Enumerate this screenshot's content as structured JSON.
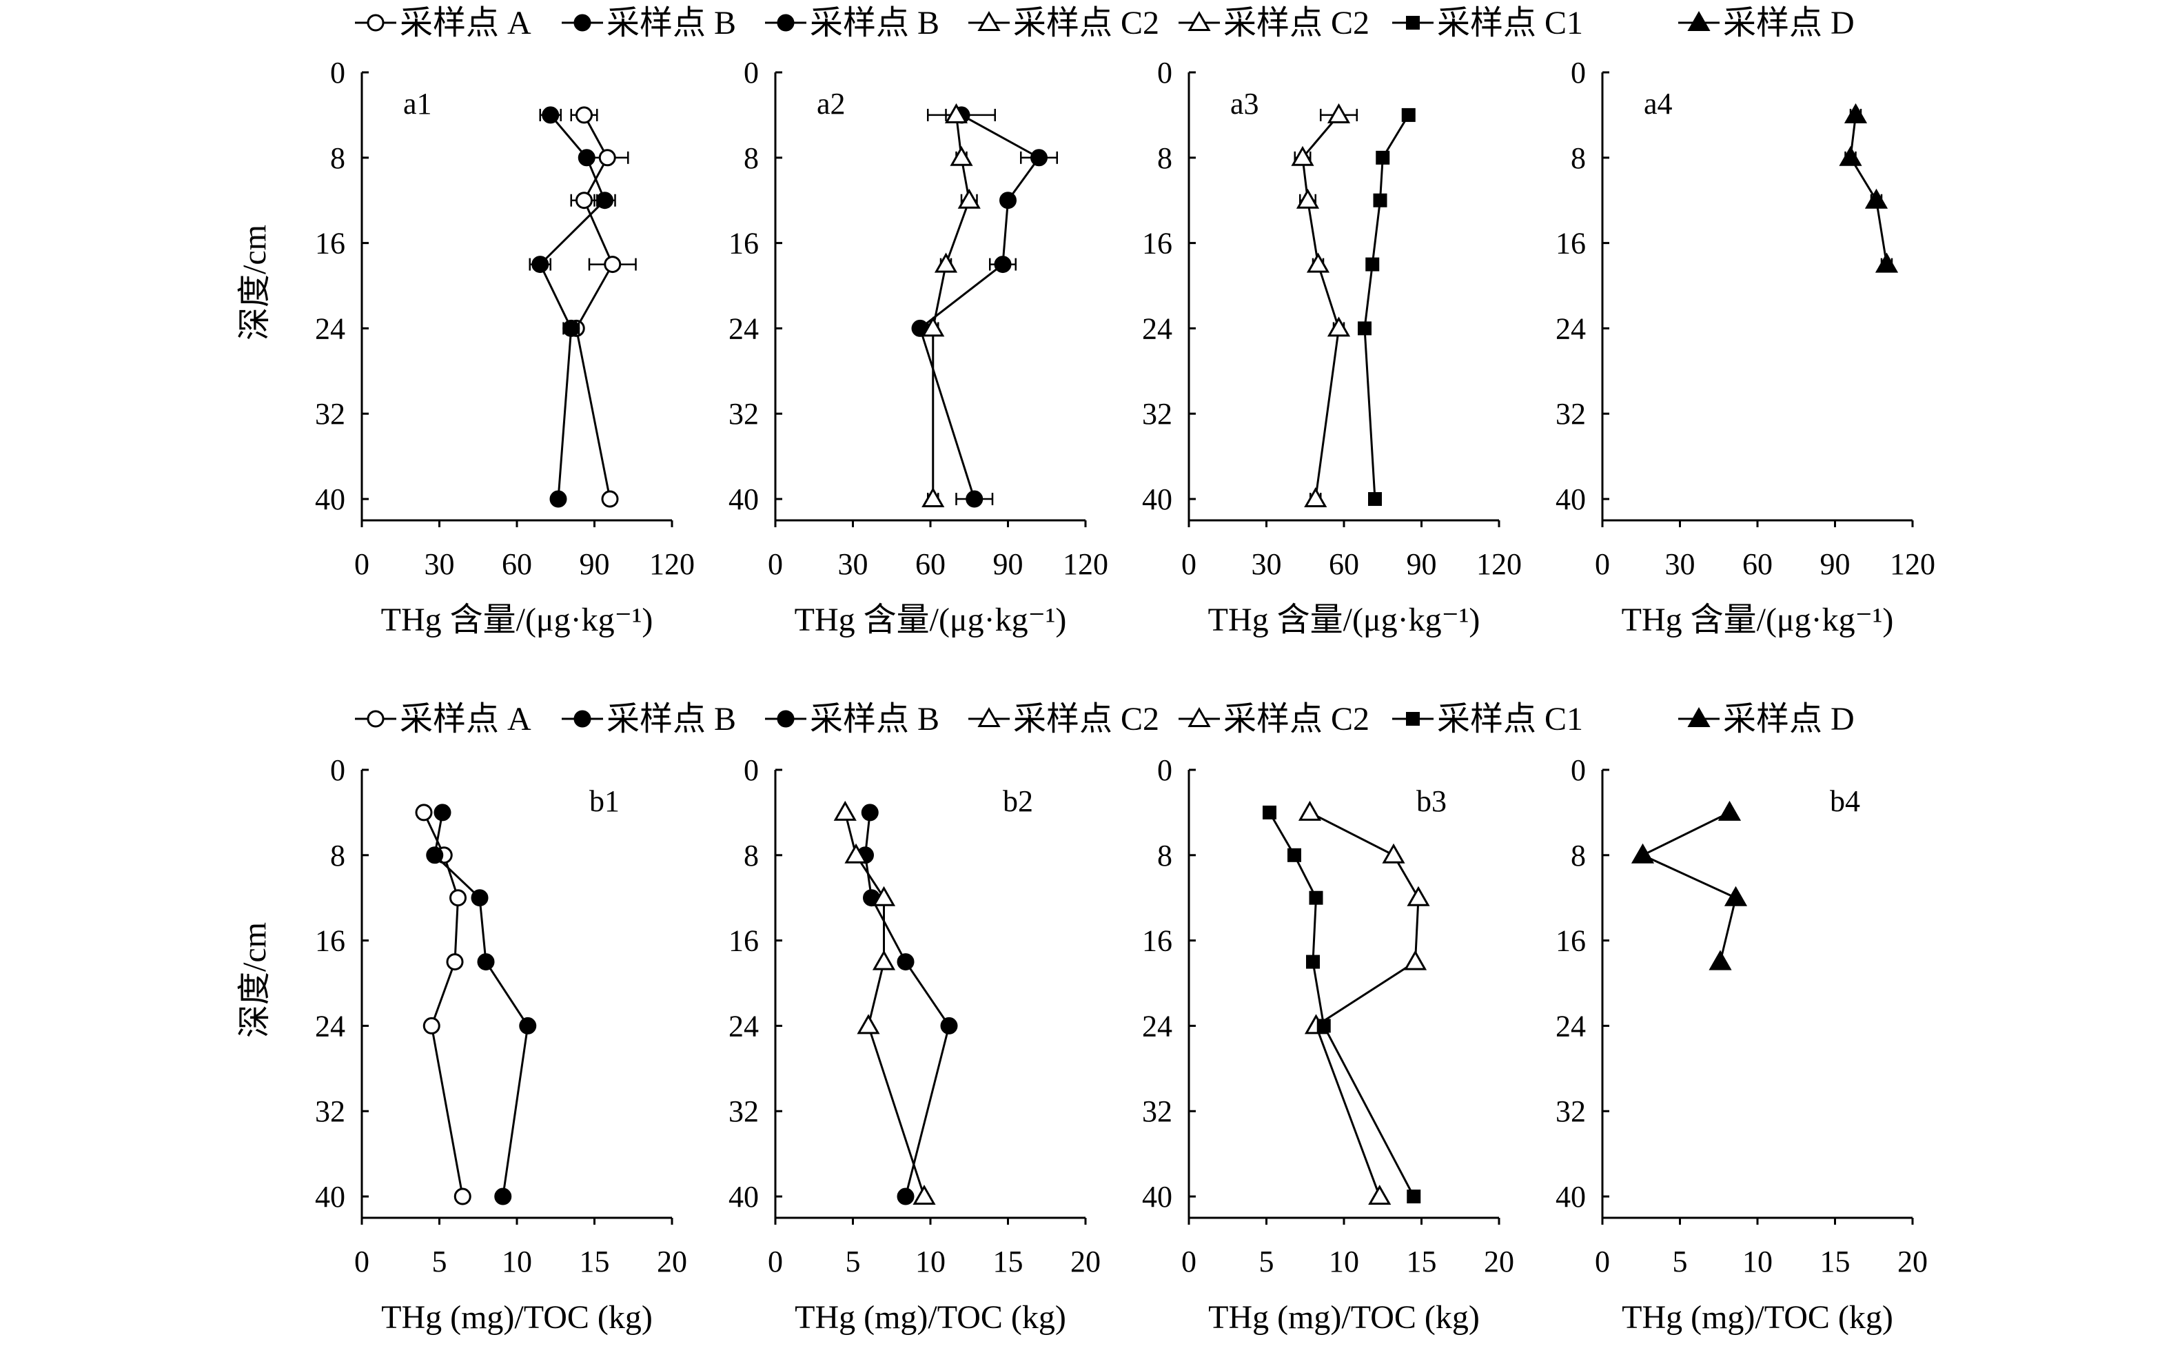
{
  "legends": [
    {
      "items": [
        {
          "label": "采样点 A",
          "marker": "circle-open"
        },
        {
          "label": "采样点 B",
          "marker": "circle-filled"
        },
        {
          "label": "采样点 B",
          "marker": "circle-filled"
        },
        {
          "label": "采样点 C2",
          "marker": "triangle-open"
        },
        {
          "label": "采样点 C2",
          "marker": "triangle-open"
        },
        {
          "label": "采样点 C1",
          "marker": "square-filled"
        },
        {
          "label": "采样点 D",
          "marker": "triangle-filled"
        }
      ]
    },
    {
      "items": [
        {
          "label": "采样点 A",
          "marker": "circle-open"
        },
        {
          "label": "采样点 B",
          "marker": "circle-filled"
        },
        {
          "label": "采样点 B",
          "marker": "circle-filled"
        },
        {
          "label": "采样点 C2",
          "marker": "triangle-open"
        },
        {
          "label": "采样点 C2",
          "marker": "triangle-open"
        },
        {
          "label": "采样点 C1",
          "marker": "square-filled"
        },
        {
          "label": "采样点 D",
          "marker": "triangle-filled"
        }
      ]
    }
  ],
  "chart_data": [
    {
      "panel": "a1",
      "type": "scatter",
      "orientation": "depth-profile",
      "xlabel": "THg 含量/(μg·kg⁻¹)",
      "ylabel": "深度/cm",
      "xlim": [
        0,
        120
      ],
      "xticks": [
        0,
        30,
        60,
        90,
        120
      ],
      "ylim": [
        0,
        42
      ],
      "yticks": [
        0,
        8,
        16,
        24,
        32,
        40
      ],
      "y_inverted": true,
      "series": [
        {
          "name": "采样点 A",
          "marker": "circle-open",
          "points": [
            {
              "x": 86,
              "y": 4,
              "err": 5
            },
            {
              "x": 95,
              "y": 8,
              "err": 8
            },
            {
              "x": 86,
              "y": 12,
              "err": 5
            },
            {
              "x": 97,
              "y": 18,
              "err": 9
            },
            {
              "x": 83,
              "y": 24,
              "err": 2
            },
            {
              "x": 96,
              "y": 40,
              "err": 2
            }
          ]
        },
        {
          "name": "采样点 B",
          "marker": "circle-filled",
          "points": [
            {
              "x": 73,
              "y": 4,
              "err": 4
            },
            {
              "x": 87,
              "y": 8,
              "err": 2
            },
            {
              "x": 94,
              "y": 12,
              "err": 4
            },
            {
              "x": 69,
              "y": 18,
              "err": 4
            },
            {
              "x": 81,
              "y": 24,
              "err": 3
            },
            {
              "x": 76,
              "y": 40,
              "err": 1
            }
          ]
        }
      ]
    },
    {
      "panel": "a2",
      "type": "scatter",
      "orientation": "depth-profile",
      "xlabel": "THg 含量/(μg·kg⁻¹)",
      "ylabel": "",
      "xlim": [
        0,
        120
      ],
      "xticks": [
        0,
        30,
        60,
        90,
        120
      ],
      "ylim": [
        0,
        42
      ],
      "yticks": [
        0,
        8,
        16,
        24,
        32,
        40
      ],
      "y_inverted": true,
      "series": [
        {
          "name": "采样点 B",
          "marker": "circle-filled",
          "points": [
            {
              "x": 72,
              "y": 4,
              "err": 13
            },
            {
              "x": 102,
              "y": 8,
              "err": 7
            },
            {
              "x": 90,
              "y": 12,
              "err": 2
            },
            {
              "x": 88,
              "y": 18,
              "err": 5
            },
            {
              "x": 56,
              "y": 24,
              "err": 1
            },
            {
              "x": 77,
              "y": 40,
              "err": 7
            }
          ]
        },
        {
          "name": "采样点 C2",
          "marker": "triangle-open",
          "points": [
            {
              "x": 70,
              "y": 4,
              "err": 4
            },
            {
              "x": 72,
              "y": 8,
              "err": 2
            },
            {
              "x": 75,
              "y": 12,
              "err": 3
            },
            {
              "x": 66,
              "y": 18,
              "err": 2
            },
            {
              "x": 61,
              "y": 24,
              "err": 2
            },
            {
              "x": 61,
              "y": 40,
              "err": 2
            }
          ]
        }
      ]
    },
    {
      "panel": "a3",
      "type": "scatter",
      "orientation": "depth-profile",
      "xlabel": "THg 含量/(μg·kg⁻¹)",
      "ylabel": "",
      "xlim": [
        0,
        120
      ],
      "xticks": [
        0,
        30,
        60,
        90,
        120
      ],
      "ylim": [
        0,
        42
      ],
      "yticks": [
        0,
        8,
        16,
        24,
        32,
        40
      ],
      "y_inverted": true,
      "series": [
        {
          "name": "采样点 C2",
          "marker": "triangle-open",
          "points": [
            {
              "x": 58,
              "y": 4,
              "err": 7
            },
            {
              "x": 44,
              "y": 8,
              "err": 3
            },
            {
              "x": 46,
              "y": 12,
              "err": 3
            },
            {
              "x": 50,
              "y": 18,
              "err": 2
            },
            {
              "x": 58,
              "y": 24,
              "err": 2
            },
            {
              "x": 49,
              "y": 40,
              "err": 2
            }
          ]
        },
        {
          "name": "采样点 C1",
          "marker": "square-filled",
          "points": [
            {
              "x": 85,
              "y": 4,
              "err": 1
            },
            {
              "x": 75,
              "y": 8,
              "err": 1
            },
            {
              "x": 74,
              "y": 12,
              "err": 2
            },
            {
              "x": 71,
              "y": 18,
              "err": 2
            },
            {
              "x": 68,
              "y": 24,
              "err": 2
            },
            {
              "x": 72,
              "y": 40,
              "err": 1
            }
          ]
        }
      ]
    },
    {
      "panel": "a4",
      "type": "scatter",
      "orientation": "depth-profile",
      "xlabel": "THg 含量/(μg·kg⁻¹)",
      "ylabel": "",
      "xlim": [
        0,
        120
      ],
      "xticks": [
        0,
        30,
        60,
        90,
        120
      ],
      "ylim": [
        0,
        42
      ],
      "yticks": [
        0,
        8,
        16,
        24,
        32,
        40
      ],
      "y_inverted": true,
      "series": [
        {
          "name": "采样点 D",
          "marker": "triangle-filled",
          "points": [
            {
              "x": 98,
              "y": 4,
              "err": 2
            },
            {
              "x": 96,
              "y": 8,
              "err": 2
            },
            {
              "x": 106,
              "y": 12,
              "err": 2
            },
            {
              "x": 110,
              "y": 18,
              "err": 2
            }
          ]
        }
      ]
    },
    {
      "panel": "b1",
      "type": "line",
      "orientation": "depth-profile",
      "xlabel": "THg (mg)/TOC (kg)",
      "ylabel": "深度/cm",
      "xlim": [
        0,
        20
      ],
      "xticks": [
        0,
        5,
        10,
        15,
        20
      ],
      "ylim": [
        0,
        42
      ],
      "yticks": [
        0,
        8,
        16,
        24,
        32,
        40
      ],
      "y_inverted": true,
      "series": [
        {
          "name": "采样点 A",
          "marker": "circle-open",
          "points": [
            {
              "x": 4.0,
              "y": 4
            },
            {
              "x": 5.3,
              "y": 8
            },
            {
              "x": 6.2,
              "y": 12
            },
            {
              "x": 6.0,
              "y": 18
            },
            {
              "x": 4.5,
              "y": 24
            },
            {
              "x": 6.5,
              "y": 40
            }
          ]
        },
        {
          "name": "采样点 B",
          "marker": "circle-filled",
          "points": [
            {
              "x": 5.2,
              "y": 4
            },
            {
              "x": 4.7,
              "y": 8
            },
            {
              "x": 7.6,
              "y": 12
            },
            {
              "x": 8.0,
              "y": 18
            },
            {
              "x": 10.7,
              "y": 24
            },
            {
              "x": 9.1,
              "y": 40
            }
          ]
        }
      ]
    },
    {
      "panel": "b2",
      "type": "line",
      "orientation": "depth-profile",
      "xlabel": "THg (mg)/TOC (kg)",
      "ylabel": "",
      "xlim": [
        0,
        20
      ],
      "xticks": [
        0,
        5,
        10,
        15,
        20
      ],
      "ylim": [
        0,
        42
      ],
      "yticks": [
        0,
        8,
        16,
        24,
        32,
        40
      ],
      "y_inverted": true,
      "series": [
        {
          "name": "采样点 B",
          "marker": "circle-filled",
          "points": [
            {
              "x": 6.1,
              "y": 4
            },
            {
              "x": 5.8,
              "y": 8
            },
            {
              "x": 6.2,
              "y": 12
            },
            {
              "x": 8.4,
              "y": 18
            },
            {
              "x": 11.2,
              "y": 24
            },
            {
              "x": 8.4,
              "y": 40
            }
          ]
        },
        {
          "name": "采样点 C2",
          "marker": "triangle-open",
          "points": [
            {
              "x": 4.5,
              "y": 4
            },
            {
              "x": 5.2,
              "y": 8
            },
            {
              "x": 7.0,
              "y": 12
            },
            {
              "x": 7.0,
              "y": 18
            },
            {
              "x": 6.0,
              "y": 24
            },
            {
              "x": 9.6,
              "y": 40
            }
          ]
        }
      ]
    },
    {
      "panel": "b3",
      "type": "line",
      "orientation": "depth-profile",
      "xlabel": "THg (mg)/TOC (kg)",
      "ylabel": "",
      "xlim": [
        0,
        20
      ],
      "xticks": [
        0,
        5,
        10,
        15,
        20
      ],
      "ylim": [
        0,
        42
      ],
      "yticks": [
        0,
        8,
        16,
        24,
        32,
        40
      ],
      "y_inverted": true,
      "series": [
        {
          "name": "采样点 C2",
          "marker": "triangle-open",
          "points": [
            {
              "x": 7.8,
              "y": 4
            },
            {
              "x": 13.2,
              "y": 8
            },
            {
              "x": 14.8,
              "y": 12
            },
            {
              "x": 14.6,
              "y": 18
            },
            {
              "x": 8.2,
              "y": 24
            },
            {
              "x": 12.3,
              "y": 40
            }
          ]
        },
        {
          "name": "采样点 C1",
          "marker": "square-filled",
          "points": [
            {
              "x": 5.2,
              "y": 4
            },
            {
              "x": 6.8,
              "y": 8
            },
            {
              "x": 8.2,
              "y": 12
            },
            {
              "x": 8.0,
              "y": 18
            },
            {
              "x": 8.7,
              "y": 24
            },
            {
              "x": 14.5,
              "y": 40
            }
          ]
        }
      ]
    },
    {
      "panel": "b4",
      "type": "line",
      "orientation": "depth-profile",
      "xlabel": "THg (mg)/TOC (kg)",
      "ylabel": "",
      "xlim": [
        0,
        20
      ],
      "xticks": [
        0,
        5,
        10,
        15,
        20
      ],
      "ylim": [
        0,
        42
      ],
      "yticks": [
        0,
        8,
        16,
        24,
        32,
        40
      ],
      "y_inverted": true,
      "series": [
        {
          "name": "采样点 D",
          "marker": "triangle-filled",
          "points": [
            {
              "x": 8.2,
              "y": 4
            },
            {
              "x": 2.6,
              "y": 8
            },
            {
              "x": 8.6,
              "y": 12
            },
            {
              "x": 7.6,
              "y": 18
            }
          ]
        }
      ]
    }
  ]
}
